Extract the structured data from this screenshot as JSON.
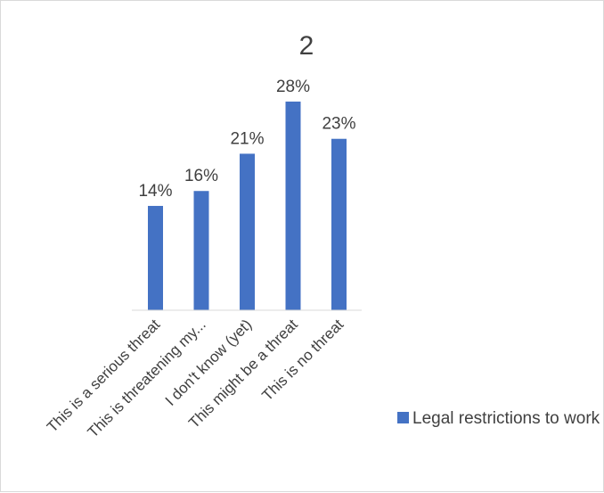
{
  "chart_data": {
    "type": "bar",
    "title": "2",
    "categories": [
      "This is a serious threat",
      "This is threatening my...",
      "I don't know (yet)",
      "This might be a threat",
      "This is no threat"
    ],
    "series": [
      {
        "name": "Legal restrictions to work",
        "values": [
          14,
          16,
          21,
          28,
          23
        ],
        "labels": [
          "14%",
          "16%",
          "21%",
          "28%",
          "23%"
        ],
        "color": "#4472c4"
      }
    ],
    "ylim": [
      0,
      30
    ],
    "legend_position": "right",
    "grid": false
  }
}
